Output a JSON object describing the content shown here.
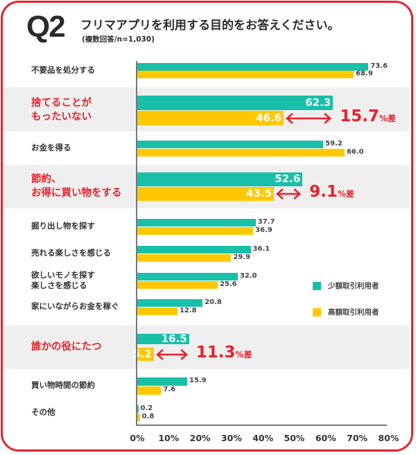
{
  "header": {
    "q_label": "Q2",
    "title": "フリマアプリを利用する目的をお答えください。",
    "subtitle": "(複数回答/n=1,030)"
  },
  "colors": {
    "series_low": "#19bfa8",
    "series_high": "#ffc800",
    "accent": "#e8202a",
    "highlight_bg": "#efefef"
  },
  "chart_data": {
    "type": "bar",
    "orientation": "horizontal",
    "title": "フリマアプリを利用する目的をお答えください。",
    "subtitle": "(複数回答/n=1,030)",
    "xlabel": "",
    "ylabel": "",
    "xlim": [
      0,
      80
    ],
    "x_ticks": [
      "0%",
      "10%",
      "20%",
      "30%",
      "40%",
      "50%",
      "60%",
      "70%",
      "80%"
    ],
    "grid": false,
    "legend_position": "right",
    "categories": [
      "不要品を処分する",
      "捨てることがもったいない",
      "お金を得る",
      "節約、お得に買い物をする",
      "掘り出し物を探す",
      "売れる楽しさを感じる",
      "欲しいモノを探す楽しさを感じる",
      "家にいながらお金を稼ぐ",
      "誰かの役にたつ",
      "買い物時間の節約",
      "その他"
    ],
    "category_lines": [
      [
        "不要品を処分する"
      ],
      [
        "捨てることが",
        "もったいない"
      ],
      [
        "お金を得る"
      ],
      [
        "節約、",
        "お得に買い物をする"
      ],
      [
        "掘り出し物を探す"
      ],
      [
        "売れる楽しさを感じる"
      ],
      [
        "欲しいモノを探す",
        "楽しさを感じる"
      ],
      [
        "家にいながらお金を稼ぐ"
      ],
      [
        "誰かの役にたつ"
      ],
      [
        "買い物時間の節約"
      ],
      [
        "その他"
      ]
    ],
    "highlighted": [
      false,
      true,
      false,
      true,
      false,
      false,
      false,
      false,
      true,
      false,
      false
    ],
    "series": [
      {
        "name": "少額取引利用者",
        "values": [
          73.6,
          62.3,
          59.2,
          52.6,
          37.7,
          36.1,
          32.0,
          20.8,
          16.5,
          15.9,
          0.2
        ]
      },
      {
        "name": "高額取引利用者",
        "values": [
          68.9,
          46.6,
          66.0,
          43.5,
          36.9,
          29.9,
          25.6,
          12.8,
          5.2,
          7.6,
          0.8
        ]
      }
    ],
    "annotations": [
      {
        "category": "捨てることがもったいない",
        "value": "15.7",
        "unit": "%差"
      },
      {
        "category": "節約、お得に買い物をする",
        "value": "9.1",
        "unit": "%差"
      },
      {
        "category": "誰かの役にたつ",
        "value": "11.3",
        "unit": "%差"
      }
    ]
  }
}
